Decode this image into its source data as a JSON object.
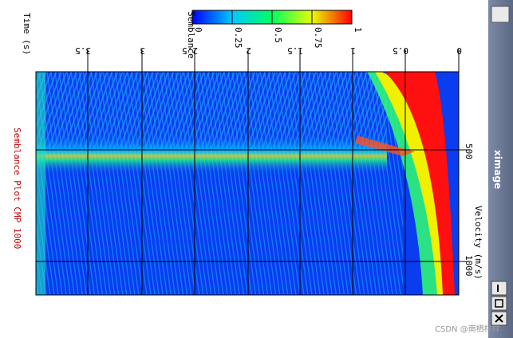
{
  "window": {
    "title": "ximage"
  },
  "colorbar": {
    "label": "Semblance",
    "ticks": [
      "0",
      "0.25",
      "0.5",
      "0.75",
      "1"
    ]
  },
  "plot": {
    "title": "Semblance Plot CMP 1000",
    "time_axis": {
      "label": "Time (s)",
      "ticks": [
        "3.5",
        "3",
        "2.5",
        "2",
        "1.5",
        "1",
        "0.5",
        "0"
      ]
    },
    "velocity_axis": {
      "label": "Velocity (m/s)",
      "ticks": [
        "500",
        "1000"
      ]
    }
  },
  "watermark": "CSDN @南栖样样"
}
